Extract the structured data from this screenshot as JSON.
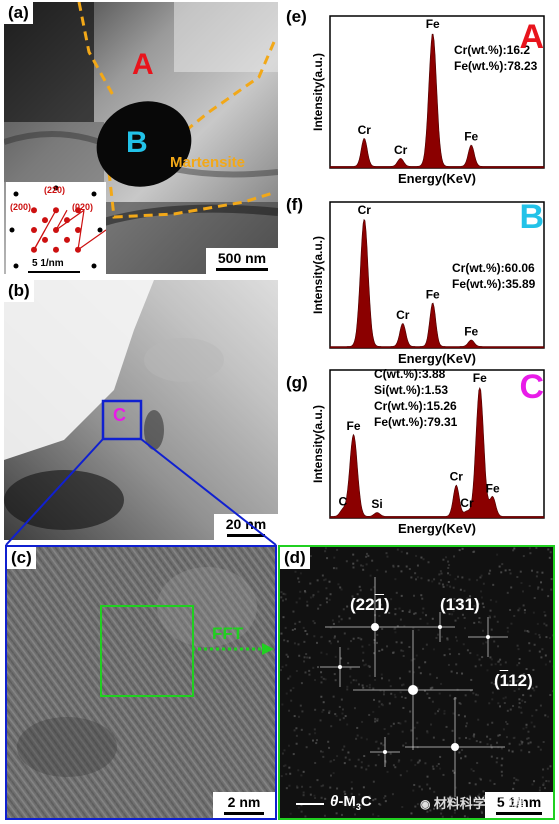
{
  "panel_a": {
    "label": "(a)",
    "region_a": "A",
    "region_b": "B",
    "martensite": "Martensite",
    "scale": "500 nm",
    "inset": {
      "spot_200": "(200)",
      "spot_220": "(220)",
      "spot_020": "(020)",
      "scale": "5 1/nm"
    }
  },
  "panel_b": {
    "label": "(b)",
    "region_c": "C",
    "scale": "20 nm"
  },
  "panel_c": {
    "label": "(c)",
    "scale": "2 nm",
    "fft_label": "FFT"
  },
  "panel_d": {
    "label": "(d)",
    "spot1_pre": "(22",
    "spot1_bar": "1",
    "spot1_post": ")",
    "spot2": "(131)",
    "spot3_pre": "(",
    "spot3_bar": "1",
    "spot3_post": "12)",
    "phase_theta": "θ",
    "phase_m": "-M",
    "phase_sub": "3",
    "phase_c": "C",
    "scale": "5 1/nm",
    "watermark": "材料科学与工程"
  },
  "colors": {
    "spectrum": "#8b0000",
    "region_a": "#e8141c",
    "region_b": "#22c2e8",
    "region_c": "#e81ce8",
    "martensite": "#f2a818",
    "box_b": "#1020d0",
    "box_c": "#20d020",
    "inset_red": "#cc1010"
  },
  "chart_data": [
    {
      "type": "area",
      "panel_label": "(e)",
      "region": "A",
      "xlabel": "Energy(KeV)",
      "ylabel": "Intensity(a.u.)",
      "peaks": [
        {
          "label": "Cr",
          "x": 0.1,
          "height": 0.21
        },
        {
          "label": "Cr",
          "x": 0.27,
          "height": 0.06
        },
        {
          "label": "Fe",
          "x": 0.42,
          "height": 1.0
        },
        {
          "label": "Fe",
          "x": 0.6,
          "height": 0.16
        }
      ],
      "composition": [
        "Cr(wt.%):16.2",
        "Fe(wt.%):78.23"
      ]
    },
    {
      "type": "area",
      "panel_label": "(f)",
      "region": "B",
      "xlabel": "Energy(KeV)",
      "ylabel": "Intensity(a.u.)",
      "peaks": [
        {
          "label": "Cr",
          "x": 0.1,
          "height": 1.0
        },
        {
          "label": "Cr",
          "x": 0.28,
          "height": 0.18
        },
        {
          "label": "Fe",
          "x": 0.42,
          "height": 0.34
        },
        {
          "label": "Fe",
          "x": 0.6,
          "height": 0.05
        }
      ],
      "composition": [
        "Cr(wt.%):60.06",
        "Fe(wt.%):35.89"
      ]
    },
    {
      "type": "area",
      "panel_label": "(g)",
      "region": "C",
      "xlabel": "Energy(KeV)",
      "ylabel": "Intensity(a.u.)",
      "peaks": [
        {
          "label": "C",
          "x": 0.0,
          "height": 0.05
        },
        {
          "label": "Fe",
          "x": 0.05,
          "height": 0.63
        },
        {
          "label": "Si",
          "x": 0.16,
          "height": 0.03
        },
        {
          "label": "Cr",
          "x": 0.53,
          "height": 0.24
        },
        {
          "label": "Cr",
          "x": 0.58,
          "height": 0.04
        },
        {
          "label": "Fe",
          "x": 0.64,
          "height": 1.0
        },
        {
          "label": "Fe",
          "x": 0.7,
          "height": 0.15
        }
      ],
      "composition": [
        "C(wt.%):3.88",
        "Si(wt.%):1.53",
        "Cr(wt.%):15.26",
        "Fe(wt.%):79.31"
      ]
    }
  ]
}
